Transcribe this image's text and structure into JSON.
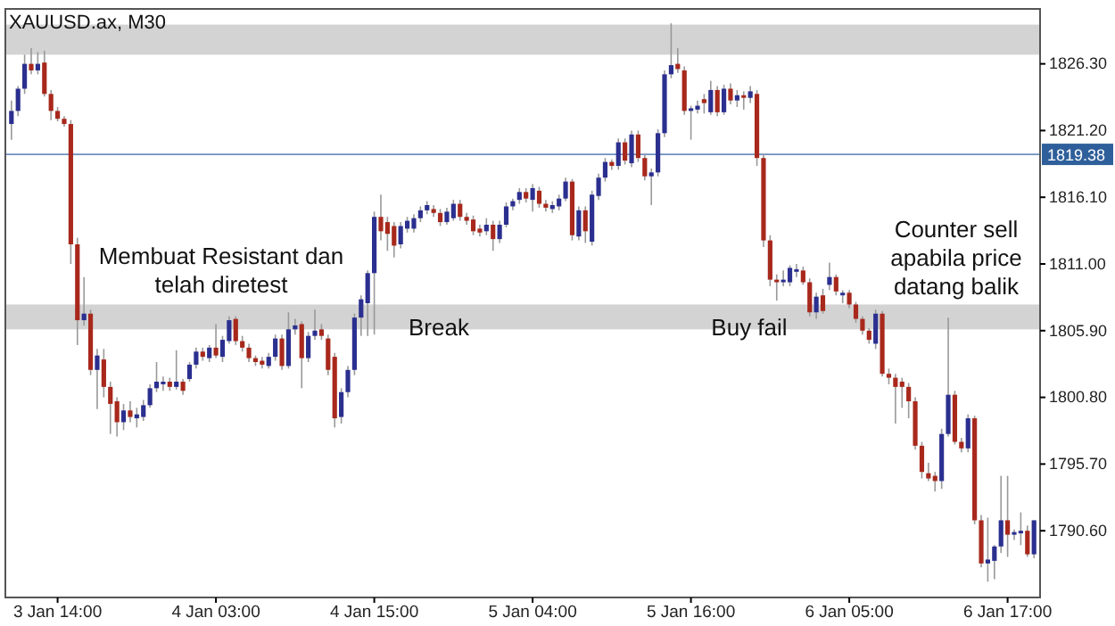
{
  "chart_data": {
    "type": "candlestick",
    "title": "XAUUSD.ax, M30",
    "categories": [
      null,
      null,
      null,
      null,
      null,
      null,
      null,
      "3 Jan 14:00",
      null,
      null,
      null,
      null,
      null,
      null,
      null,
      null,
      null,
      null,
      null,
      null,
      null,
      null,
      null,
      null,
      null,
      null,
      null,
      null,
      null,
      null,
      null,
      "4 Jan 03:00",
      null,
      null,
      null,
      null,
      null,
      null,
      null,
      null,
      null,
      null,
      null,
      null,
      null,
      null,
      null,
      null,
      null,
      null,
      null,
      null,
      null,
      null,
      null,
      "4 Jan 15:00",
      null,
      null,
      null,
      null,
      null,
      null,
      null,
      null,
      null,
      null,
      null,
      null,
      null,
      null,
      null,
      null,
      null,
      null,
      null,
      null,
      null,
      null,
      null,
      "5 Jan 04:00",
      null,
      null,
      null,
      null,
      null,
      null,
      null,
      null,
      null,
      null,
      null,
      null,
      null,
      null,
      null,
      null,
      null,
      null,
      null,
      null,
      null,
      null,
      null,
      "5 Jan 16:00",
      null,
      null,
      null,
      null,
      null,
      null,
      null,
      null,
      null,
      null,
      null,
      null,
      null,
      null,
      null,
      null,
      null,
      null,
      null,
      null,
      null,
      null,
      null,
      "6 Jan 05:00",
      null,
      null,
      null,
      null,
      null,
      null,
      null,
      null,
      null,
      null,
      null,
      null,
      null,
      null,
      null,
      null,
      null,
      null,
      null,
      null,
      null,
      null,
      null,
      "6 Jan 17:00",
      null,
      null,
      null,
      null
    ],
    "ohlc": [
      [
        1821.7,
        1823.5,
        1820.5,
        1822.7
      ],
      [
        1822.7,
        1824.6,
        1822.3,
        1824.4
      ],
      [
        1824.4,
        1827.0,
        1824.0,
        1826.3
      ],
      [
        1826.3,
        1827.5,
        1825.5,
        1825.8
      ],
      [
        1825.8,
        1827.2,
        1825.5,
        1826.3
      ],
      [
        1826.4,
        1827.3,
        1823.8,
        1824.0
      ],
      [
        1824.0,
        1824.3,
        1822.0,
        1822.7
      ],
      [
        1822.7,
        1823.0,
        1821.9,
        1822.1
      ],
      [
        1822.1,
        1822.3,
        1821.5,
        1821.7
      ],
      [
        1821.7,
        1822.0,
        1811.0,
        1812.5
      ],
      [
        1812.5,
        1813.0,
        1804.8,
        1806.7
      ],
      [
        1806.7,
        1810.0,
        1806.3,
        1807.2
      ],
      [
        1807.2,
        1807.5,
        1802.5,
        1802.9
      ],
      [
        1802.9,
        1804.5,
        1799.9,
        1804.0
      ],
      [
        1803.7,
        1804.5,
        1800.8,
        1801.6
      ],
      [
        1801.6,
        1802.0,
        1798.0,
        1800.3
      ],
      [
        1800.5,
        1800.8,
        1797.8,
        1798.9
      ],
      [
        1798.9,
        1800.3,
        1798.3,
        1799.8
      ],
      [
        1799.8,
        1800.5,
        1798.9,
        1799.3
      ],
      [
        1799.2,
        1800.0,
        1798.5,
        1799.5
      ],
      [
        1799.3,
        1800.6,
        1799.0,
        1800.2
      ],
      [
        1800.2,
        1801.8,
        1800.0,
        1801.5
      ],
      [
        1801.5,
        1803.5,
        1801.2,
        1802.0
      ],
      [
        1801.8,
        1802.4,
        1801.3,
        1802.0
      ],
      [
        1802.0,
        1802.3,
        1801.3,
        1801.6
      ],
      [
        1801.6,
        1804.4,
        1801.4,
        1802.0
      ],
      [
        1802.0,
        1802.2,
        1801.0,
        1801.3
      ],
      [
        1802.2,
        1803.5,
        1802.0,
        1803.3
      ],
      [
        1803.3,
        1804.6,
        1803.0,
        1804.3
      ],
      [
        1804.3,
        1804.6,
        1803.6,
        1803.9
      ],
      [
        1803.8,
        1804.8,
        1803.5,
        1804.6
      ],
      [
        1804.6,
        1806.4,
        1803.8,
        1804.0
      ],
      [
        1803.9,
        1805.5,
        1803.5,
        1805.2
      ],
      [
        1805.1,
        1807.0,
        1804.9,
        1806.7
      ],
      [
        1806.8,
        1807.0,
        1804.8,
        1805.1
      ],
      [
        1805.1,
        1805.5,
        1804.3,
        1804.6
      ],
      [
        1804.6,
        1804.9,
        1803.5,
        1803.8
      ],
      [
        1803.8,
        1804.0,
        1803.2,
        1803.5
      ],
      [
        1803.6,
        1803.9,
        1803.0,
        1803.3
      ],
      [
        1803.2,
        1804.2,
        1803.0,
        1803.9
      ],
      [
        1803.9,
        1805.6,
        1803.6,
        1805.3
      ],
      [
        1805.3,
        1805.6,
        1802.9,
        1803.2
      ],
      [
        1803.2,
        1807.3,
        1803.0,
        1806.0
      ],
      [
        1806.0,
        1806.8,
        1805.6,
        1806.3
      ],
      [
        1806.4,
        1806.6,
        1801.5,
        1803.8
      ],
      [
        1803.8,
        1805.8,
        1803.5,
        1805.5
      ],
      [
        1805.5,
        1807.5,
        1805.2,
        1805.9
      ],
      [
        1806.0,
        1806.4,
        1805.2,
        1805.5
      ],
      [
        1805.3,
        1805.6,
        1802.5,
        1802.9
      ],
      [
        1803.9,
        1804.2,
        1798.5,
        1799.2
      ],
      [
        1799.3,
        1801.5,
        1798.8,
        1801.2
      ],
      [
        1801.2,
        1803.2,
        1800.8,
        1802.9
      ],
      [
        1802.9,
        1807.2,
        1802.5,
        1806.9
      ],
      [
        1806.9,
        1808.6,
        1805.5,
        1808.3
      ],
      [
        1808.0,
        1810.5,
        1805.5,
        1810.3
      ],
      [
        1810.3,
        1815.0,
        1805.6,
        1814.6
      ],
      [
        1814.6,
        1816.3,
        1812.8,
        1813.5
      ],
      [
        1814.2,
        1814.6,
        1812.0,
        1813.3
      ],
      [
        1813.9,
        1814.2,
        1811.5,
        1812.4
      ],
      [
        1812.5,
        1814.2,
        1812.2,
        1813.9
      ],
      [
        1813.7,
        1814.6,
        1813.4,
        1814.3
      ],
      [
        1813.7,
        1814.8,
        1813.4,
        1814.5
      ],
      [
        1814.5,
        1815.4,
        1814.2,
        1815.1
      ],
      [
        1815.1,
        1815.8,
        1814.8,
        1815.5
      ],
      [
        1815.2,
        1815.5,
        1814.6,
        1814.9
      ],
      [
        1814.9,
        1815.2,
        1813.9,
        1814.2
      ],
      [
        1814.2,
        1815.3,
        1814.0,
        1815.0
      ],
      [
        1814.5,
        1815.9,
        1814.3,
        1815.6
      ],
      [
        1815.6,
        1815.9,
        1814.3,
        1814.6
      ],
      [
        1814.6,
        1814.9,
        1814.0,
        1814.3
      ],
      [
        1814.4,
        1814.7,
        1813.2,
        1813.5
      ],
      [
        1813.7,
        1814.0,
        1813.1,
        1813.4
      ],
      [
        1813.5,
        1814.5,
        1813.2,
        1814.0
      ],
      [
        1814.0,
        1814.3,
        1812.0,
        1812.9
      ],
      [
        1812.9,
        1814.3,
        1812.6,
        1814.0
      ],
      [
        1814.0,
        1815.7,
        1813.8,
        1815.4
      ],
      [
        1815.4,
        1816.0,
        1815.1,
        1815.8
      ],
      [
        1815.9,
        1816.8,
        1815.6,
        1816.5
      ],
      [
        1816.5,
        1816.8,
        1815.7,
        1816.0
      ],
      [
        1815.9,
        1817.1,
        1815.0,
        1816.8
      ],
      [
        1816.6,
        1816.9,
        1815.3,
        1815.6
      ],
      [
        1815.6,
        1815.9,
        1815.0,
        1815.3
      ],
      [
        1815.2,
        1815.8,
        1814.9,
        1815.5
      ],
      [
        1815.4,
        1816.3,
        1815.1,
        1816.0
      ],
      [
        1816.0,
        1817.6,
        1815.8,
        1817.3
      ],
      [
        1817.3,
        1817.5,
        1812.8,
        1813.2
      ],
      [
        1813.1,
        1815.4,
        1812.8,
        1815.1
      ],
      [
        1815.1,
        1815.4,
        1812.6,
        1813.5
      ],
      [
        1812.7,
        1816.6,
        1812.4,
        1816.3
      ],
      [
        1816.2,
        1817.9,
        1815.9,
        1817.6
      ],
      [
        1817.6,
        1819.1,
        1817.3,
        1818.8
      ],
      [
        1818.8,
        1819.0,
        1818.2,
        1818.5
      ],
      [
        1818.5,
        1820.6,
        1818.2,
        1820.3
      ],
      [
        1820.3,
        1820.6,
        1818.6,
        1818.9
      ],
      [
        1818.7,
        1821.2,
        1818.4,
        1820.9
      ],
      [
        1820.9,
        1821.2,
        1818.8,
        1819.1
      ],
      [
        1819.1,
        1819.4,
        1817.4,
        1817.7
      ],
      [
        1817.7,
        1818.3,
        1815.5,
        1818.0
      ],
      [
        1818.0,
        1821.3,
        1817.7,
        1821.0
      ],
      [
        1821.0,
        1825.8,
        1820.7,
        1825.5
      ],
      [
        1825.5,
        1829.4,
        1825.2,
        1826.2
      ],
      [
        1826.3,
        1827.5,
        1825.6,
        1825.9
      ],
      [
        1825.8,
        1826.1,
        1822.4,
        1822.7
      ],
      [
        1822.7,
        1823.1,
        1820.5,
        1822.9
      ],
      [
        1822.8,
        1823.5,
        1822.5,
        1823.1
      ],
      [
        1823.6,
        1824.0,
        1822.5,
        1823.3
      ],
      [
        1822.6,
        1825.0,
        1822.4,
        1824.3
      ],
      [
        1824.3,
        1824.6,
        1822.3,
        1822.6
      ],
      [
        1822.6,
        1824.7,
        1822.4,
        1824.4
      ],
      [
        1824.4,
        1824.8,
        1823.2,
        1823.5
      ],
      [
        1823.5,
        1824.3,
        1823.0,
        1823.9
      ],
      [
        1823.9,
        1824.2,
        1822.8,
        1823.7
      ],
      [
        1823.7,
        1824.6,
        1823.3,
        1824.2
      ],
      [
        1824.0,
        1824.3,
        1818.5,
        1819.1
      ],
      [
        1819.1,
        1819.4,
        1812.3,
        1812.8
      ],
      [
        1812.8,
        1813.2,
        1809.3,
        1809.8
      ],
      [
        1809.8,
        1810.2,
        1808.2,
        1809.6
      ],
      [
        1809.6,
        1810.5,
        1809.3,
        1809.8
      ],
      [
        1809.6,
        1810.9,
        1809.3,
        1810.7
      ],
      [
        1810.4,
        1811.0,
        1810.0,
        1810.6
      ],
      [
        1810.5,
        1810.8,
        1809.4,
        1809.6
      ],
      [
        1809.6,
        1809.9,
        1807.0,
        1807.3
      ],
      [
        1807.3,
        1808.8,
        1806.8,
        1808.5
      ],
      [
        1808.6,
        1809.1,
        1807.2,
        1807.4
      ],
      [
        1809.4,
        1811.1,
        1809.0,
        1810.0
      ],
      [
        1810.0,
        1810.2,
        1808.6,
        1808.9
      ],
      [
        1808.6,
        1809.0,
        1808.0,
        1808.8
      ],
      [
        1808.8,
        1809.0,
        1807.6,
        1807.9
      ],
      [
        1807.9,
        1808.1,
        1806.5,
        1806.8
      ],
      [
        1806.8,
        1807.0,
        1805.6,
        1805.9
      ],
      [
        1805.9,
        1806.1,
        1804.9,
        1805.2
      ],
      [
        1804.9,
        1807.5,
        1804.5,
        1807.2
      ],
      [
        1807.2,
        1807.4,
        1802.4,
        1802.6
      ],
      [
        1802.6,
        1803.0,
        1801.8,
        1802.3
      ],
      [
        1802.3,
        1802.6,
        1798.8,
        1801.6
      ],
      [
        1802.0,
        1802.3,
        1800.0,
        1801.6
      ],
      [
        1801.6,
        1801.9,
        1799.2,
        1800.5
      ],
      [
        1800.5,
        1800.8,
        1796.8,
        1797.1
      ],
      [
        1797.1,
        1797.4,
        1794.6,
        1795.1
      ],
      [
        1795.0,
        1795.8,
        1794.4,
        1794.6
      ],
      [
        1794.8,
        1795.1,
        1793.6,
        1794.4
      ],
      [
        1794.4,
        1798.4,
        1793.8,
        1798.0
      ],
      [
        1798.0,
        1806.9,
        1797.8,
        1801.0
      ],
      [
        1801.0,
        1801.3,
        1797.2,
        1797.4
      ],
      [
        1797.4,
        1797.7,
        1796.6,
        1796.9
      ],
      [
        1796.9,
        1799.5,
        1796.6,
        1799.2
      ],
      [
        1799.2,
        1799.4,
        1791.1,
        1791.4
      ],
      [
        1791.4,
        1791.8,
        1787.8,
        1788.1
      ],
      [
        1788.1,
        1791.6,
        1786.7,
        1788.4
      ],
      [
        1788.3,
        1789.5,
        1786.9,
        1789.4
      ],
      [
        1789.4,
        1794.8,
        1788.9,
        1791.4
      ],
      [
        1791.4,
        1794.8,
        1788.6,
        1790.3
      ],
      [
        1790.3,
        1790.7,
        1789.9,
        1790.5
      ],
      [
        1790.4,
        1792.0,
        1789.5,
        1790.6
      ],
      [
        1790.6,
        1791.0,
        1788.6,
        1788.8
      ],
      [
        1788.8,
        1791.4,
        1788.5,
        1791.4
      ]
    ],
    "ylim": [
      1785.5,
      1830.5
    ],
    "yticks": [
      {
        "value": 1790.6,
        "label": "1790.60"
      },
      {
        "value": 1795.7,
        "label": "1795.70"
      },
      {
        "value": 1800.8,
        "label": "1800.80"
      },
      {
        "value": 1805.9,
        "label": "1805.90"
      },
      {
        "value": 1811.0,
        "label": "1811.00"
      },
      {
        "value": 1816.1,
        "label": "1816.10"
      },
      {
        "value": 1821.2,
        "label": "1821.20"
      },
      {
        "value": 1826.3,
        "label": "1826.30"
      }
    ],
    "ref_lines": [
      {
        "axis": "y",
        "value": 1819.38,
        "label": "1819.38",
        "color": "#6f8fc0"
      }
    ],
    "bands": [
      {
        "axis": "y",
        "from": 1827.0,
        "to": 1829.3,
        "color": "#d3d3d3"
      },
      {
        "axis": "y",
        "from": 1806.0,
        "to": 1807.9,
        "color": "#d3d3d3"
      }
    ],
    "annotations": [
      "Membuat Resistant dan telah diretest",
      "Break",
      "Buy fail",
      "Counter sell apabila price datang balik"
    ],
    "grid": false
  }
}
